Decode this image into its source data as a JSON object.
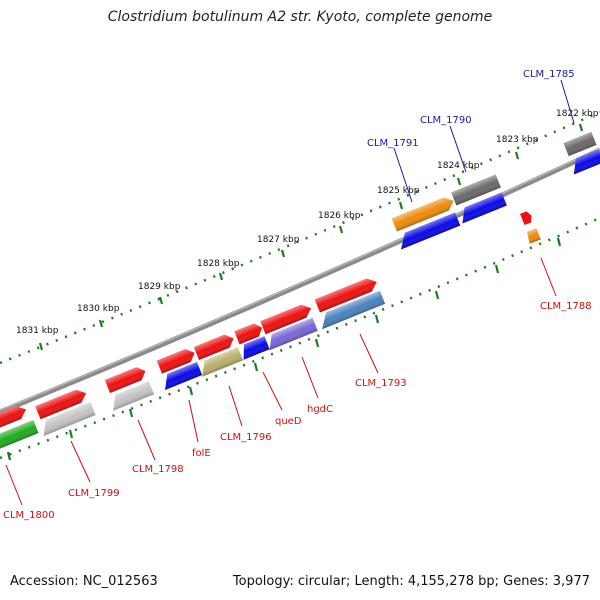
{
  "title": "Clostridium botulinum A2 str. Kyoto, complete genome",
  "footer": {
    "accession": "Accession: NC_012563",
    "summary": "Topology: circular; Length: 4,155,278 bp; Genes: 3,977"
  },
  "kbp_labels": [
    "1822 kbp",
    "1823 kbp",
    "1824 kbp",
    "1825 kbp",
    "1826 kbp",
    "1827 kbp",
    "1828 kbp",
    "1829 kbp",
    "1830 kbp",
    "1831 kbp"
  ],
  "gene_labels_top": [
    "CLM_1785",
    "CLM_1790",
    "CLM_1791"
  ],
  "gene_labels_bottom": [
    "CLM_1788",
    "CLM_1793",
    "hgdC",
    "queD",
    "CLM_1796",
    "folE",
    "CLM_1798",
    "CLM_1799",
    "CLM_1800"
  ],
  "colors": {
    "red": "#ee1111",
    "blue": "#0a0ae6",
    "orange": "#ee8a0a",
    "gray": "#6a6a6a",
    "light_gray": "#c4c4c4",
    "olive": "#bbb06a",
    "purple": "#7a66d6",
    "steel": "#4a82c0",
    "green": "#22aa22",
    "backbone": "#8a8a8a",
    "tick": "#1f7a1f",
    "label_blue": "#1a1aa8",
    "label_red": "#cc1111"
  }
}
